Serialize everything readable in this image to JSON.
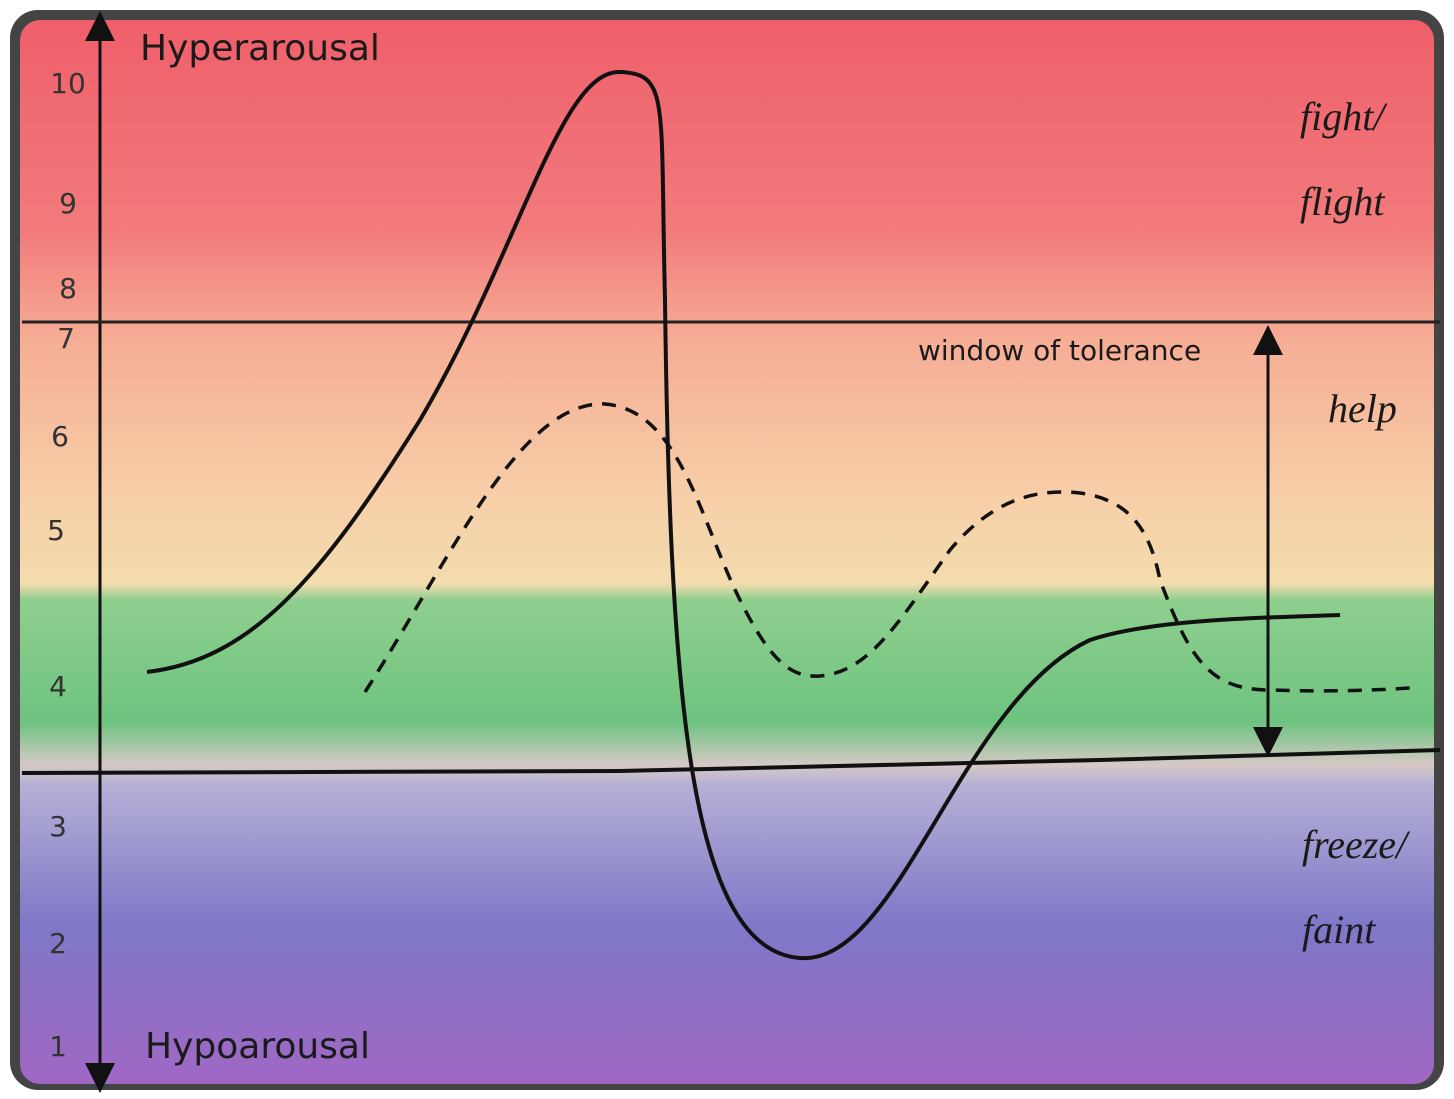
{
  "axis": {
    "top_label": "Hyperarousal",
    "bottom_label": "Hypoarousal",
    "ticks": [
      "10",
      "9",
      "8",
      "7",
      "6",
      "5",
      "4",
      "3",
      "2",
      "1"
    ]
  },
  "zones": {
    "top": [
      "fight/",
      "flight"
    ],
    "middle": "help",
    "bottom": [
      "freeze/",
      "faint"
    ]
  },
  "window_label": "window of tolerance"
}
